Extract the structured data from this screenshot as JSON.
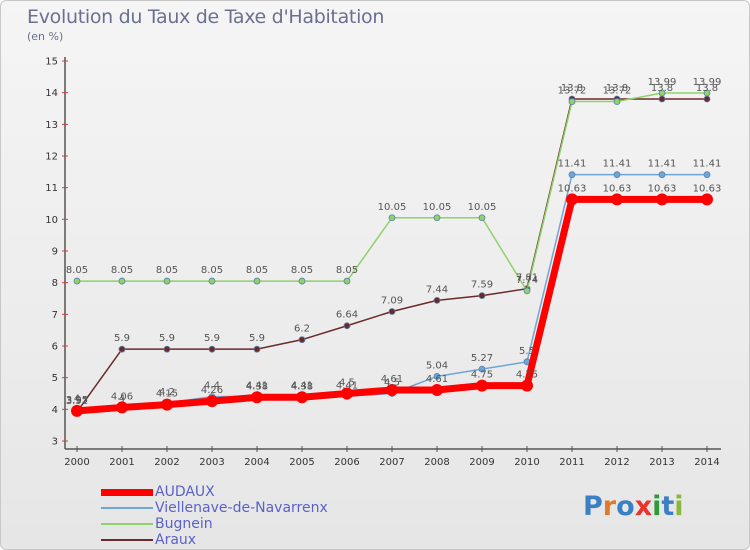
{
  "title": "Evolution du Taux de Taxe d'Habitation",
  "subtitle": "(en %)",
  "logo": {
    "letters": [
      {
        "ch": "P",
        "color": "#3b7fc4"
      },
      {
        "ch": "r",
        "color": "#e07a2a"
      },
      {
        "ch": "o",
        "color": "#3b7fc4"
      },
      {
        "ch": "x",
        "color": "#e8342a"
      },
      {
        "ch": "i",
        "color": "#2f9a3a"
      },
      {
        "ch": "t",
        "color": "#3b7fc4"
      },
      {
        "ch": "i",
        "color": "#8ab83a"
      }
    ]
  },
  "chart_data": {
    "type": "line",
    "x": [
      "2000",
      "2001",
      "2002",
      "2003",
      "2004",
      "2005",
      "2006",
      "2007",
      "2008",
      "2009",
      "2010",
      "2011",
      "2012",
      "2013",
      "2014"
    ],
    "ylim": [
      3,
      15
    ],
    "yticks": [
      3,
      4,
      5,
      6,
      7,
      8,
      9,
      10,
      11,
      12,
      13,
      14,
      15
    ],
    "grid": false,
    "legend_position": "bottom-left",
    "series": [
      {
        "name": "AUDAUX",
        "color": "#ff0000",
        "width": 7,
        "values": [
          3.95,
          4.06,
          4.15,
          4.26,
          4.38,
          4.38,
          4.5,
          4.61,
          4.61,
          4.75,
          4.75,
          10.63,
          10.63,
          10.63,
          10.63
        ]
      },
      {
        "name": "Viellenave-de-Navarrenx",
        "color": "#6ea6d8",
        "width": 1.5,
        "values": [
          4.0,
          4.0,
          4.2,
          4.4,
          4.41,
          4.41,
          4.41,
          4.5,
          5.04,
          5.27,
          5.5,
          11.41,
          11.41,
          11.41,
          11.41
        ]
      },
      {
        "name": "Bugnein",
        "color": "#8fd16a",
        "width": 1.5,
        "values": [
          8.05,
          8.05,
          8.05,
          8.05,
          8.05,
          8.05,
          8.05,
          10.05,
          10.05,
          10.05,
          7.74,
          13.72,
          13.72,
          13.99,
          13.99
        ]
      },
      {
        "name": "Araux",
        "color": "#6b2a2a",
        "width": 1.5,
        "values": [
          3.92,
          5.9,
          5.9,
          5.9,
          5.9,
          6.2,
          6.64,
          7.09,
          7.44,
          7.59,
          7.81,
          13.8,
          13.8,
          13.8,
          13.8
        ]
      }
    ]
  }
}
